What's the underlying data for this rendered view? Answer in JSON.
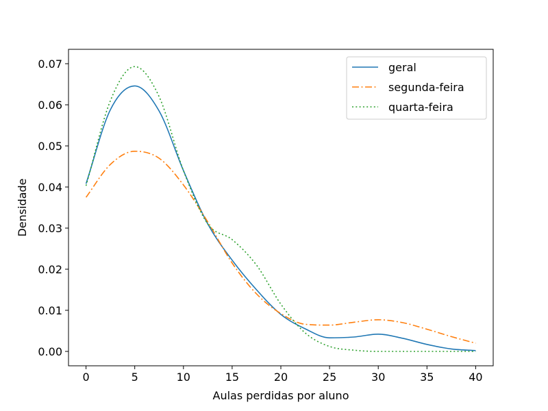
{
  "chart_data": {
    "type": "line",
    "title": "",
    "xlabel": "Aulas perdidas por aluno",
    "ylabel": "Densidade",
    "xlim": [
      -1.8,
      41.8
    ],
    "ylim": [
      -0.0035,
      0.0735
    ],
    "xticks": [
      0,
      5,
      10,
      15,
      20,
      25,
      30,
      35,
      40
    ],
    "yticks": [
      0.0,
      0.01,
      0.02,
      0.03,
      0.04,
      0.05,
      0.06,
      0.07
    ],
    "ytick_labels": [
      "0.00",
      "0.01",
      "0.02",
      "0.03",
      "0.04",
      "0.05",
      "0.06",
      "0.07"
    ],
    "grid": false,
    "legend": {
      "placement": "top-right"
    },
    "x": [
      0,
      2.5,
      5,
      7.5,
      10,
      12.5,
      15,
      17.5,
      20,
      22.5,
      25,
      27.5,
      30,
      32.5,
      35,
      37.5,
      40
    ],
    "series": [
      {
        "name": "geral",
        "color": "#1f77b4",
        "dash": "solid",
        "values": [
          0.0408,
          0.0588,
          0.0646,
          0.0585,
          0.044,
          0.031,
          0.0222,
          0.015,
          0.009,
          0.0055,
          0.0033,
          0.0035,
          0.0042,
          0.0032,
          0.0017,
          0.0006,
          0.0002
        ]
      },
      {
        "name": "segunda-feira",
        "color": "#ff7f0e",
        "dash": "dashdot",
        "values": [
          0.0375,
          0.0455,
          0.0487,
          0.047,
          0.0405,
          0.0315,
          0.0215,
          0.014,
          0.0092,
          0.0066,
          0.0064,
          0.0071,
          0.0077,
          0.007,
          0.0054,
          0.0036,
          0.002
        ]
      },
      {
        "name": "quarta-feira",
        "color": "#2ca02c",
        "dash": "dotted",
        "values": [
          0.0403,
          0.061,
          0.0693,
          0.062,
          0.044,
          0.031,
          0.0272,
          0.021,
          0.0115,
          0.0045,
          0.0012,
          0.0003,
          0.0,
          0.0,
          0.0,
          0.0,
          0.0
        ]
      }
    ]
  }
}
